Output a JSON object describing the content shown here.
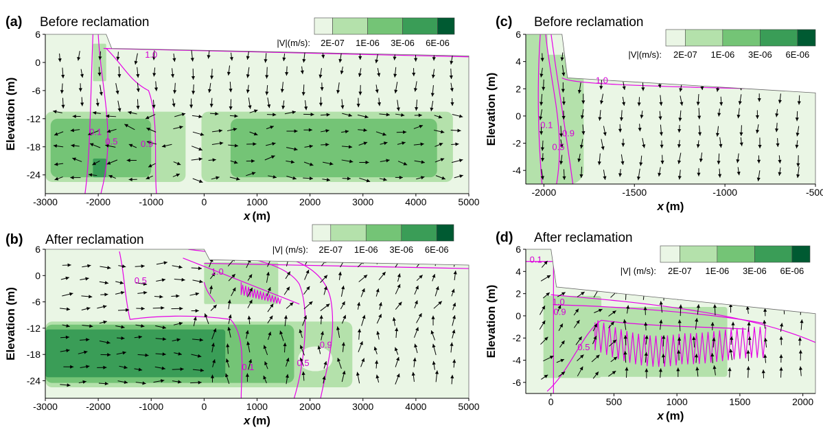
{
  "colors": {
    "c0": "#eaf6e5",
    "c1": "#b4e1ab",
    "c2": "#74c476",
    "c3": "#3a9d57",
    "c4": "#005a32",
    "contour": "#e600e6",
    "arrow": "#000000"
  },
  "chart_data": [
    {
      "id": "a",
      "type": "heatmap",
      "panel_label": "(a)",
      "title": "Before reclamation",
      "xlabel_italic": "x",
      "xlabel_unit": "(m)",
      "ylabel": "Elevation (m)",
      "xlim": [
        -3000,
        5000
      ],
      "ylim": [
        -28,
        6
      ],
      "xticks": [
        -3000,
        -2000,
        -1000,
        0,
        1000,
        2000,
        3000,
        4000,
        5000
      ],
      "xtick_labels": [
        "-3000",
        "-2000",
        "-1000",
        "0",
        "1000",
        "2000",
        "3000",
        "4000",
        "5000"
      ],
      "yticks": [
        6,
        0,
        -6,
        -12,
        -18,
        -24
      ],
      "ytick_labels": [
        "6",
        "0",
        "-6",
        "-12",
        "-18",
        "-24"
      ],
      "legend": {
        "title": "|V|(m/s):",
        "ticks": [
          "2E-07",
          "1E-06",
          "3E-06",
          "6E-06"
        ]
      },
      "contours": [
        {
          "label": "1.0",
          "lx": -1000,
          "ly": 1.0
        },
        {
          "label": "0.1",
          "lx": -2050,
          "ly": -15.5
        },
        {
          "label": "0.5",
          "lx": -1750,
          "ly": -17.5
        },
        {
          "label": "0.9",
          "lx": -1080,
          "ly": -18.0
        }
      ]
    },
    {
      "id": "b",
      "type": "heatmap",
      "panel_label": "(b)",
      "title": "After reclamation",
      "xlabel_italic": "x",
      "xlabel_unit": "(m)",
      "ylabel": "Elevation (m)",
      "xlim": [
        -3000,
        5000
      ],
      "ylim": [
        -28,
        6
      ],
      "xticks": [
        -3000,
        -2000,
        -1000,
        0,
        1000,
        2000,
        3000,
        4000,
        5000
      ],
      "xtick_labels": [
        "-3000",
        "-2000",
        "-1000",
        "0",
        "1000",
        "2000",
        "3000",
        "4000",
        "5000"
      ],
      "yticks": [
        6,
        0,
        -6,
        -12,
        -18,
        -24
      ],
      "ytick_labels": [
        "6",
        "0",
        "-6",
        "-12",
        "-18",
        "-24"
      ],
      "legend": {
        "title": "|V| (m/s):",
        "ticks": [
          "2E-07",
          "1E-06",
          "3E-06",
          "6E-06"
        ]
      },
      "contours": [
        {
          "label": "1.0",
          "lx": 250,
          "ly": 0.2
        },
        {
          "label": "0.5",
          "lx": -1200,
          "ly": -1.8
        },
        {
          "label": "0.1",
          "lx": 830,
          "ly": -21.6
        },
        {
          "label": "0.5",
          "lx": 1870,
          "ly": -20.6
        },
        {
          "label": "0.9",
          "lx": 2300,
          "ly": -16.5
        }
      ]
    },
    {
      "id": "c",
      "type": "heatmap",
      "panel_label": "(c)",
      "title": "Before reclamation",
      "xlabel_italic": "x",
      "xlabel_unit": "(m)",
      "ylabel": "Elevation (m)",
      "xlim": [
        -2100,
        -500
      ],
      "ylim": [
        -5,
        6
      ],
      "xticks": [
        -2000,
        -1500,
        -1000,
        -500
      ],
      "xtick_labels": [
        "-2000",
        "-1500",
        "-1000",
        "-500"
      ],
      "yticks": [
        6,
        4,
        2,
        0,
        -2,
        -4
      ],
      "ytick_labels": [
        "6",
        "4",
        "2",
        "0",
        "-2",
        "-4"
      ],
      "legend": {
        "title": "|V|(m/s):",
        "ticks": [
          "2E-07",
          "1E-06",
          "3E-06",
          "6E-06"
        ]
      },
      "contours": [
        {
          "label": "1.0",
          "lx": -1680,
          "ly": 2.4
        },
        {
          "label": "0.1",
          "lx": -1985,
          "ly": -0.9
        },
        {
          "label": "0.9",
          "lx": -1865,
          "ly": -1.5
        },
        {
          "label": "0.5",
          "lx": -1920,
          "ly": -2.5
        }
      ]
    },
    {
      "id": "d",
      "type": "heatmap",
      "panel_label": "(d)",
      "title": "After reclamation",
      "xlabel_italic": "x",
      "xlabel_unit": "(m)",
      "ylabel": "Elevation (m)",
      "xlim": [
        -200,
        2100
      ],
      "ylim": [
        -7,
        6
      ],
      "xticks": [
        0,
        500,
        1000,
        1500,
        2000
      ],
      "xtick_labels": [
        "0",
        "500",
        "1000",
        "1500",
        "2000"
      ],
      "yticks": [
        6,
        4,
        2,
        0,
        -2,
        -4,
        -6
      ],
      "ytick_labels": [
        "6",
        "4",
        "2",
        "0",
        "-2",
        "-4",
        "-6"
      ],
      "legend": {
        "title": "|V| (m/s):",
        "ticks": [
          "2E-07",
          "1E-06",
          "3E-06",
          "6E-06"
        ]
      },
      "contours": [
        {
          "label": "0.1",
          "lx": -120,
          "ly": 4.8
        },
        {
          "label": "1.0",
          "lx": 60,
          "ly": 1.0
        },
        {
          "label": "0.9",
          "lx": 70,
          "ly": 0.1
        },
        {
          "label": "0.5",
          "lx": 260,
          "ly": -3.1
        }
      ]
    }
  ]
}
